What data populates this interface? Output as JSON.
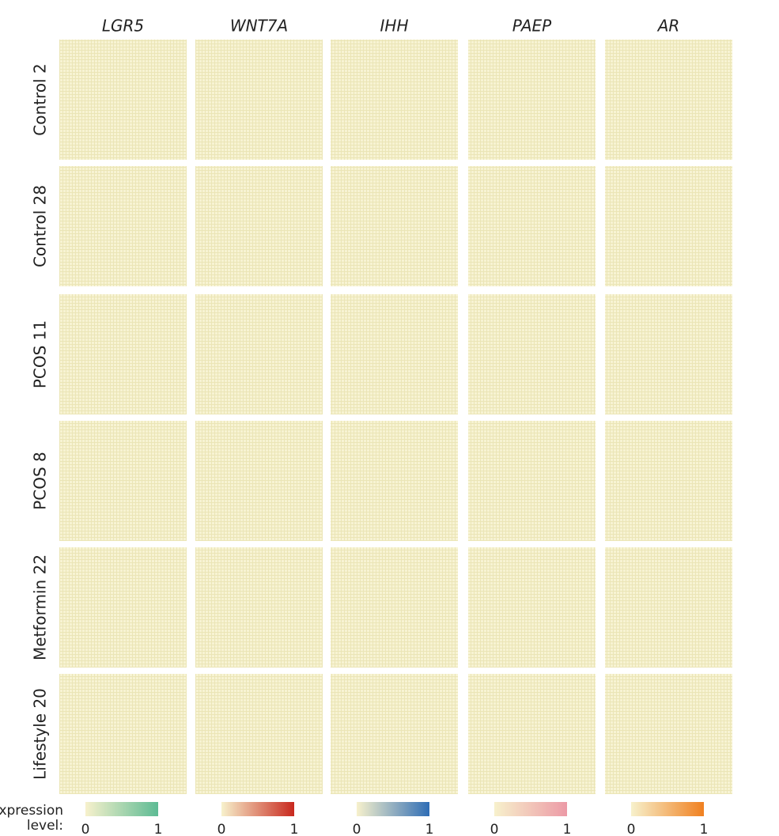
{
  "columns": [
    {
      "gene": "LGR5",
      "color": "#5dbb94",
      "legend_min": 0,
      "legend_max": 1
    },
    {
      "gene": "WNT7A",
      "color": "#c8281e",
      "legend_min": 0,
      "legend_max": 1
    },
    {
      "gene": "IHH",
      "color": "#2f6db5",
      "legend_min": 0,
      "legend_max": 1
    },
    {
      "gene": "PAEP",
      "color": "#ec9aa6",
      "legend_min": 0,
      "legend_max": 1
    },
    {
      "gene": "AR",
      "color": "#f08020",
      "legend_min": 0,
      "legend_max": 1
    }
  ],
  "rows": [
    "Control 2",
    "Control 28",
    "PCOS 11",
    "PCOS 8",
    "Metformin 22",
    "Lifestyle 20"
  ],
  "legend_title": [
    "Expression",
    "level:"
  ]
}
